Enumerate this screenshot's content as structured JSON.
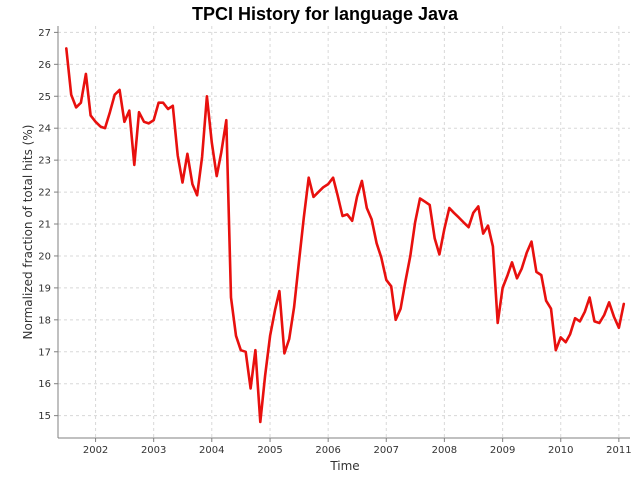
{
  "chart_data": {
    "type": "line",
    "title": "TPCI History for language Java",
    "xlabel": "Time",
    "ylabel": "Normalized fraction of total hits (%)",
    "x_type": "date",
    "xlim": [
      "2001-05-10",
      "2011-03-12"
    ],
    "ylim": [
      14.3,
      27.2
    ],
    "x_ticks": [
      {
        "date": "2002-01-01",
        "label": "2002"
      },
      {
        "date": "2003-01-01",
        "label": "2003"
      },
      {
        "date": "2004-01-01",
        "label": "2004"
      },
      {
        "date": "2005-01-01",
        "label": "2005"
      },
      {
        "date": "2006-01-01",
        "label": "2006"
      },
      {
        "date": "2007-01-01",
        "label": "2007"
      },
      {
        "date": "2008-01-01",
        "label": "2008"
      },
      {
        "date": "2009-01-01",
        "label": "2009"
      },
      {
        "date": "2010-01-01",
        "label": "2010"
      },
      {
        "date": "2011-01-01",
        "label": "2011"
      }
    ],
    "y_ticks": [
      15,
      16,
      17,
      18,
      19,
      20,
      21,
      22,
      23,
      24,
      25,
      26,
      27
    ],
    "grid": true,
    "colors": {
      "series": "#e8100e",
      "axis": "#808080",
      "grid": "#d8d8d8"
    },
    "series": [
      {
        "x": [
          "2001-07-01",
          "2001-08-01",
          "2001-09-01",
          "2001-10-01",
          "2001-11-01",
          "2001-12-01",
          "2002-01-01",
          "2002-02-01",
          "2002-03-01",
          "2002-04-01",
          "2002-05-01",
          "2002-06-01",
          "2002-07-01",
          "2002-08-01",
          "2002-09-01",
          "2002-10-01",
          "2002-11-01",
          "2002-12-01",
          "2003-01-01",
          "2003-02-01",
          "2003-03-01",
          "2003-04-01",
          "2003-05-01",
          "2003-06-01",
          "2003-07-01",
          "2003-08-01",
          "2003-09-01",
          "2003-10-01",
          "2003-11-01",
          "2003-12-01",
          "2004-01-01",
          "2004-02-01",
          "2004-03-01",
          "2004-04-01",
          "2004-05-01",
          "2004-06-01",
          "2004-07-01",
          "2004-08-01",
          "2004-09-01",
          "2004-10-01",
          "2004-11-01",
          "2004-12-01",
          "2005-01-01",
          "2005-02-01",
          "2005-03-01",
          "2005-04-01",
          "2005-05-01",
          "2005-06-01",
          "2005-07-01",
          "2005-08-01",
          "2005-09-01",
          "2005-10-01",
          "2005-11-01",
          "2005-12-01",
          "2006-01-01",
          "2006-02-01",
          "2006-03-01",
          "2006-04-01",
          "2006-05-01",
          "2006-06-01",
          "2006-07-01",
          "2006-08-01",
          "2006-09-01",
          "2006-10-01",
          "2006-11-01",
          "2006-12-01",
          "2007-01-01",
          "2007-02-01",
          "2007-03-01",
          "2007-04-01",
          "2007-05-01",
          "2007-06-01",
          "2007-07-01",
          "2007-08-01",
          "2007-09-01",
          "2007-10-01",
          "2007-11-01",
          "2007-12-01",
          "2008-01-01",
          "2008-02-01",
          "2008-03-01",
          "2008-04-01",
          "2008-05-01",
          "2008-06-01",
          "2008-07-01",
          "2008-08-01",
          "2008-09-01",
          "2008-10-01",
          "2008-11-01",
          "2008-12-01",
          "2009-01-01",
          "2009-02-01",
          "2009-03-01",
          "2009-04-01",
          "2009-05-01",
          "2009-06-01",
          "2009-07-01",
          "2009-08-01",
          "2009-09-01",
          "2009-10-01",
          "2009-11-01",
          "2009-12-01",
          "2010-01-01",
          "2010-02-01",
          "2010-03-01",
          "2010-04-01",
          "2010-05-01",
          "2010-06-01",
          "2010-07-01",
          "2010-08-01",
          "2010-09-01",
          "2010-10-01",
          "2010-11-01",
          "2010-12-01",
          "2011-01-01",
          "2011-02-01"
        ],
        "y": [
          26.5,
          25.05,
          24.65,
          24.8,
          25.7,
          24.4,
          24.2,
          24.05,
          24.0,
          24.5,
          25.05,
          25.2,
          24.2,
          24.55,
          22.85,
          24.5,
          24.2,
          24.15,
          24.25,
          24.8,
          24.8,
          24.6,
          24.7,
          23.15,
          22.3,
          23.2,
          22.25,
          21.9,
          23.1,
          25.0,
          23.55,
          22.5,
          23.25,
          24.25,
          18.7,
          17.5,
          17.05,
          17.0,
          15.85,
          17.05,
          14.8,
          16.25,
          17.5,
          18.3,
          18.9,
          16.95,
          17.4,
          18.4,
          19.8,
          21.2,
          22.45,
          21.85,
          22.0,
          22.15,
          22.25,
          22.45,
          21.9,
          21.25,
          21.3,
          21.1,
          21.85,
          22.35,
          21.5,
          21.15,
          20.4,
          19.95,
          19.25,
          19.05,
          18.0,
          18.35,
          19.2,
          20.0,
          21.05,
          21.8,
          21.7,
          21.6,
          20.55,
          20.05,
          20.85,
          21.5,
          21.35,
          21.2,
          21.05,
          20.9,
          21.35,
          21.55,
          20.7,
          20.95,
          20.3,
          17.9,
          19.0,
          19.4,
          19.8,
          19.3,
          19.6,
          20.1,
          20.45,
          19.5,
          19.4,
          18.6,
          18.35,
          17.05,
          17.45,
          17.3,
          17.55,
          18.05,
          17.95,
          18.25,
          18.7,
          17.95,
          17.9,
          18.15,
          18.55,
          18.1,
          17.75,
          18.5
        ]
      }
    ]
  }
}
